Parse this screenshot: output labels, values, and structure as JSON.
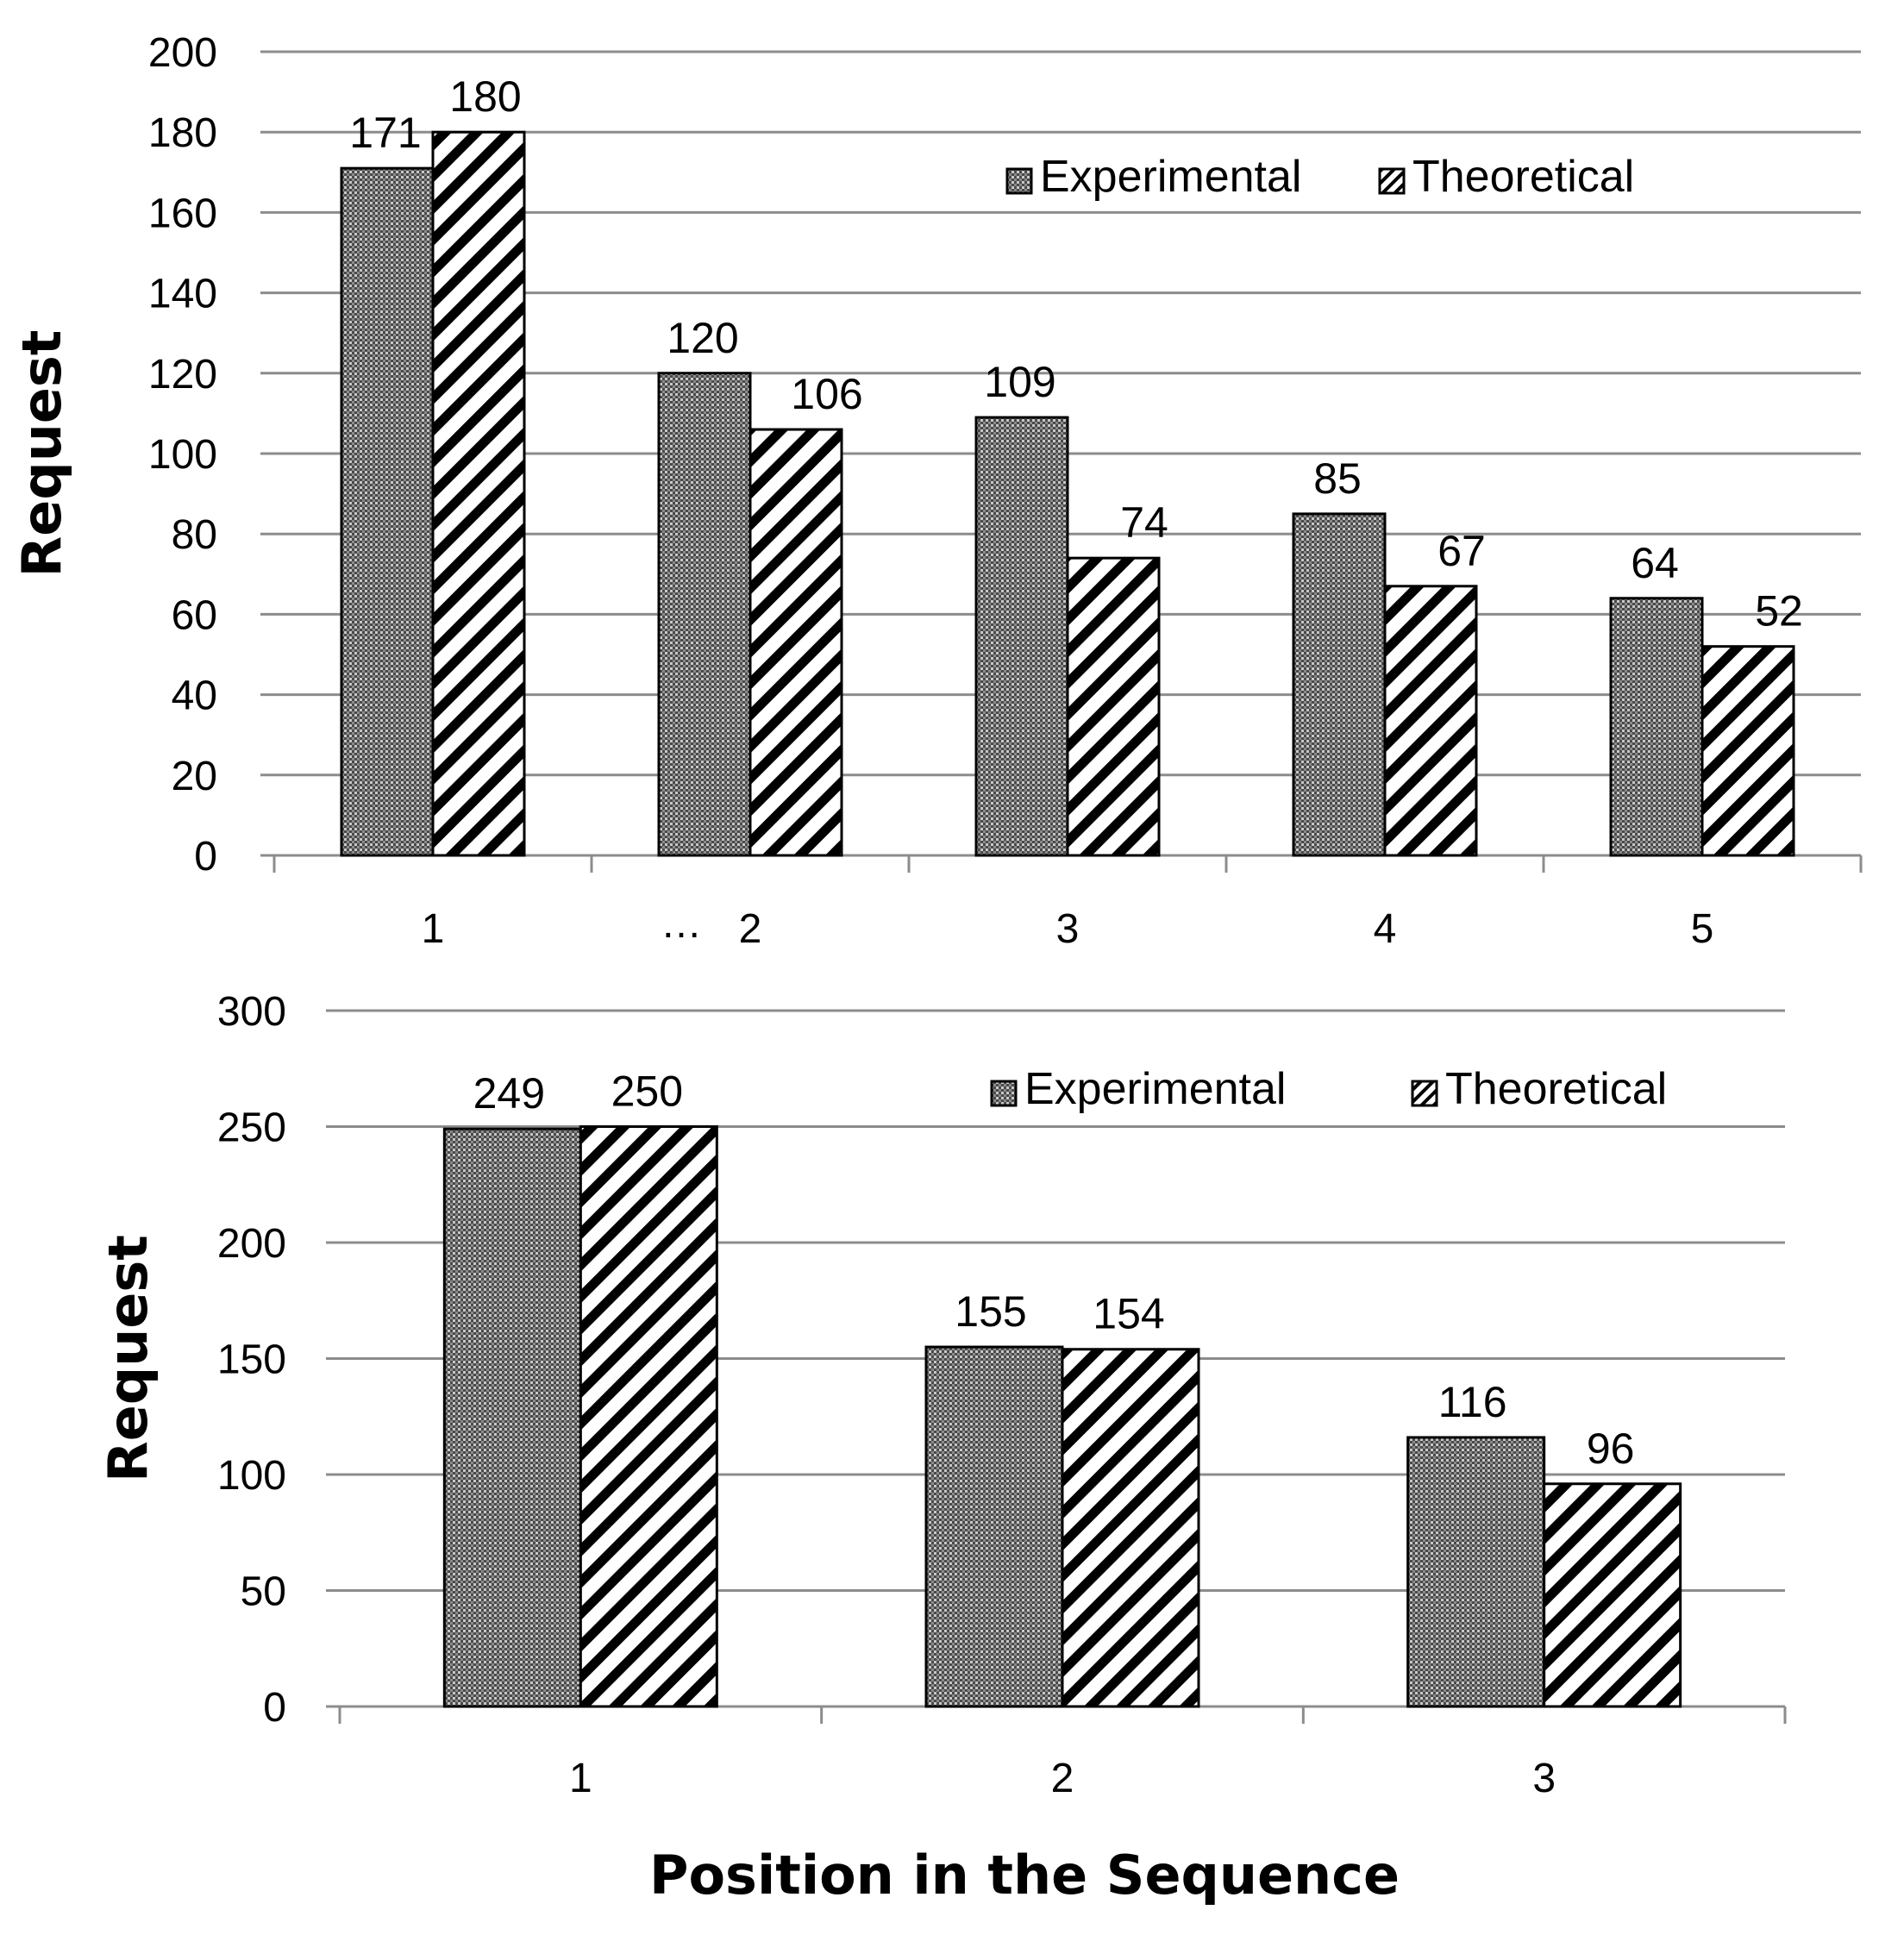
{
  "chart_data": [
    {
      "type": "bar",
      "categories": [
        "1",
        "2",
        "3",
        "4",
        "5"
      ],
      "category_prefix": {
        "1": "…"
      },
      "series": [
        {
          "name": "Experimental",
          "pattern": "dots",
          "values": [
            171,
            120,
            109,
            85,
            64
          ]
        },
        {
          "name": "Theoretical",
          "pattern": "hatch",
          "values": [
            180,
            106,
            74,
            67,
            52
          ]
        }
      ],
      "ylabel": "Request",
      "xlabel": "",
      "ylim": [
        0,
        200
      ],
      "yticks": [
        0,
        20,
        40,
        60,
        80,
        100,
        120,
        140,
        160,
        180,
        200
      ],
      "grid": true,
      "legend": "top-right"
    },
    {
      "type": "bar",
      "categories": [
        "1",
        "2",
        "3"
      ],
      "series": [
        {
          "name": "Experimental",
          "pattern": "dots",
          "values": [
            249,
            155,
            116
          ]
        },
        {
          "name": "Theoretical",
          "pattern": "hatch",
          "values": [
            250,
            154,
            96
          ]
        }
      ],
      "ylabel": "Request",
      "xlabel": "Position in the Sequence",
      "ylim": [
        0,
        300
      ],
      "yticks": [
        0,
        50,
        100,
        150,
        200,
        250,
        300
      ],
      "grid": true,
      "legend": "top-right"
    }
  ],
  "colors": {
    "grid": "#8c8c8c",
    "bar_outline": "#000000",
    "dot_fill": "#7a7a7a",
    "background": "#ffffff"
  }
}
